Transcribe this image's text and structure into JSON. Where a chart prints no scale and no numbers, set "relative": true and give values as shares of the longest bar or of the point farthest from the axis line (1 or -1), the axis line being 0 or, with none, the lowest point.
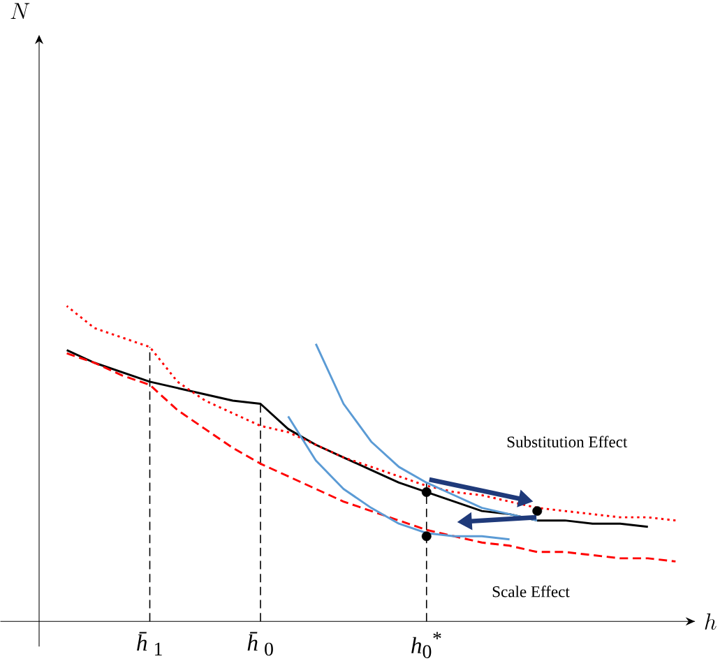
{
  "chart_data": {
    "type": "line",
    "relative": true,
    "xlabel": "h",
    "categories": [
      null,
      null,
      null,
      "*h̄*$_{1}$",
      null,
      null,
      null,
      "*h̄*$_{0}$",
      null,
      null,
      null,
      null,
      null,
      "*h*$_{0}$$^{*}$",
      null,
      null,
      null,
      null,
      null,
      null,
      null,
      null,
      null
    ],
    "series": [
      {
        "color": "#000000",
        "line_style": "solid",
        "values": [
          0.86,
          0.82,
          0.79,
          0.76,
          0.74,
          0.72,
          0.7,
          0.69,
          0.61,
          0.56,
          0.52,
          0.48,
          0.44,
          0.41,
          0.38,
          0.35,
          0.34,
          0.32,
          0.32,
          0.31,
          0.31,
          0.3,
          null
        ]
      },
      {
        "color": "#ff0000",
        "line_style": "dotted",
        "values": [
          1.0,
          0.93,
          0.9,
          0.87,
          0.76,
          0.7,
          0.66,
          0.62,
          0.6,
          0.56,
          0.52,
          0.49,
          0.46,
          0.43,
          0.41,
          0.4,
          0.38,
          0.36,
          0.35,
          0.34,
          0.33,
          0.33,
          0.32
        ]
      },
      {
        "color": "#ff0000",
        "line_style": "dashed",
        "values": [
          0.85,
          0.82,
          0.78,
          0.75,
          0.67,
          0.61,
          0.55,
          0.5,
          0.46,
          0.42,
          0.38,
          0.35,
          0.32,
          0.29,
          0.27,
          0.25,
          0.24,
          0.22,
          0.22,
          0.21,
          0.2,
          0.2,
          0.19
        ]
      },
      {
        "color": "#5b9bd5",
        "line_style": "solid",
        "values": [
          null,
          null,
          null,
          null,
          null,
          null,
          null,
          null,
          null,
          0.88,
          0.69,
          0.57,
          0.49,
          0.44,
          0.4,
          0.36,
          0.34,
          0.32,
          null,
          null,
          null,
          null,
          null
        ]
      },
      {
        "color": "#5b9bd5",
        "line_style": "solid",
        "values": [
          null,
          null,
          null,
          null,
          null,
          null,
          null,
          null,
          0.65,
          0.51,
          0.42,
          0.36,
          0.31,
          0.28,
          0.27,
          0.27,
          0.26,
          null,
          null,
          null,
          null,
          null,
          null
        ]
      },
      {
        "type": "scatter",
        "color": "#000000",
        "marker": "circle",
        "values": [
          null,
          null,
          null,
          null,
          null,
          null,
          null,
          null,
          null,
          null,
          null,
          null,
          null,
          0.41,
          null,
          null,
          null,
          0.35,
          null,
          null,
          null,
          null,
          null
        ]
      },
      {
        "type": "scatter",
        "color": "#000000",
        "marker": "circle",
        "values": [
          null,
          null,
          null,
          null,
          null,
          null,
          null,
          null,
          null,
          null,
          null,
          null,
          null,
          0.27,
          null,
          null,
          null,
          null,
          null,
          null,
          null,
          null,
          null
        ]
      }
    ],
    "ref_lines": [
      {
        "axis": "x",
        "value": "*h̄*$_{1}$",
        "color": "#000000",
        "line_style": "dashed"
      },
      {
        "axis": "x",
        "value": "*h̄*$_{0}$",
        "color": "#000000",
        "line_style": "dashed"
      },
      {
        "axis": "x",
        "value": "*h*$_{0}$$^{*}$",
        "color": "#000000",
        "line_style": "dashed"
      }
    ],
    "annotations": [
      "Substitution Effect",
      "Scale Effect",
      "N"
    ]
  }
}
